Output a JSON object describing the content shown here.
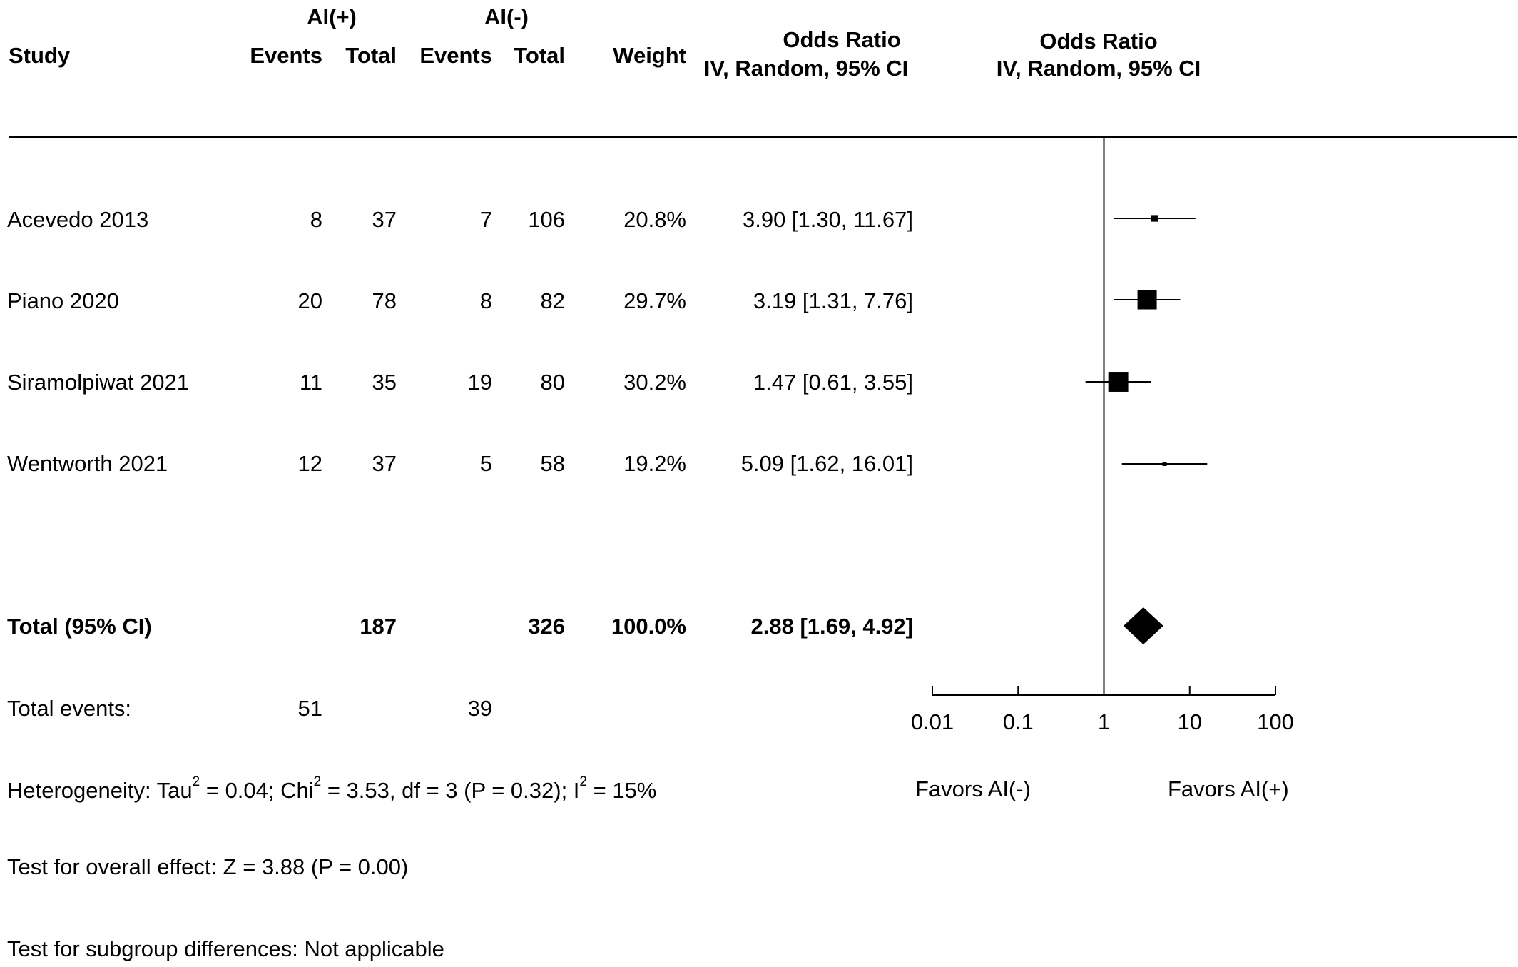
{
  "header": {
    "study": "Study",
    "group1": "AI(+)",
    "group2": "AI(-)",
    "events": "Events",
    "total": "Total",
    "weight": "Weight",
    "or_col": "Odds Ratio",
    "or_col_sub": "IV, Random, 95% CI",
    "plot_col": "Odds Ratio",
    "plot_col_sub": "IV, Random, 95% CI"
  },
  "studies": [
    {
      "name": "Acevedo 2013",
      "e1": "8",
      "t1": "37",
      "e2": "7",
      "t2": "106",
      "weight": "20.8%",
      "ci": "3.90 [1.30, 11.67]"
    },
    {
      "name": "Piano 2020",
      "e1": "20",
      "t1": "78",
      "e2": "8",
      "t2": "82",
      "weight": "29.7%",
      "ci": "3.19 [1.31,  7.76]"
    },
    {
      "name": "Siramolpiwat 2021",
      "e1": "11",
      "t1": "35",
      "e2": "19",
      "t2": "80",
      "weight": "30.2%",
      "ci": "1.47 [0.61,  3.55]"
    },
    {
      "name": "Wentworth 2021",
      "e1": "12",
      "t1": "37",
      "e2": "5",
      "t2": "58",
      "weight": "19.2%",
      "ci": "5.09 [1.62, 16.01]"
    }
  ],
  "total": {
    "label": "Total (95% CI)",
    "t1": "187",
    "t2": "326",
    "weight": "100.0%",
    "ci": "2.88 [1.69,  4.92]"
  },
  "total_events": {
    "label": "Total events:",
    "e1": "51",
    "e2": "39"
  },
  "heterogeneity": {
    "a": "Heterogeneity: Tau",
    "b": " = 0.04; Chi",
    "c": " = 3.53, df = 3 (P = 0.32); I",
    "d": " = 15%",
    "sup": "2"
  },
  "overall_effect": "Test for overall effect: Z = 3.88 (P = 0.00)",
  "subgroup": "Test for subgroup differences: Not applicable",
  "axis": {
    "ticks": [
      "0.01",
      "0.1",
      "1",
      "10",
      "100"
    ],
    "favors_left": "Favors AI(-)",
    "favors_right": "Favors AI(+)"
  },
  "chart_data": {
    "type": "scatter",
    "x_scale": "log",
    "xlim": [
      0.01,
      100
    ],
    "x_ticks": [
      0.01,
      0.1,
      1,
      10,
      100
    ],
    "null_line": 1,
    "studies": [
      {
        "name": "Acevedo 2013",
        "or": 3.9,
        "lo": 1.3,
        "hi": 11.67,
        "weight": 20.8
      },
      {
        "name": "Piano 2020",
        "or": 3.19,
        "lo": 1.31,
        "hi": 7.76,
        "weight": 29.7
      },
      {
        "name": "Siramolpiwat 2021",
        "or": 1.47,
        "lo": 0.61,
        "hi": 3.55,
        "weight": 30.2
      },
      {
        "name": "Wentworth 2021",
        "or": 5.09,
        "lo": 1.62,
        "hi": 16.01,
        "weight": 19.2
      }
    ],
    "pooled": {
      "or": 2.88,
      "lo": 1.69,
      "hi": 4.92
    }
  }
}
